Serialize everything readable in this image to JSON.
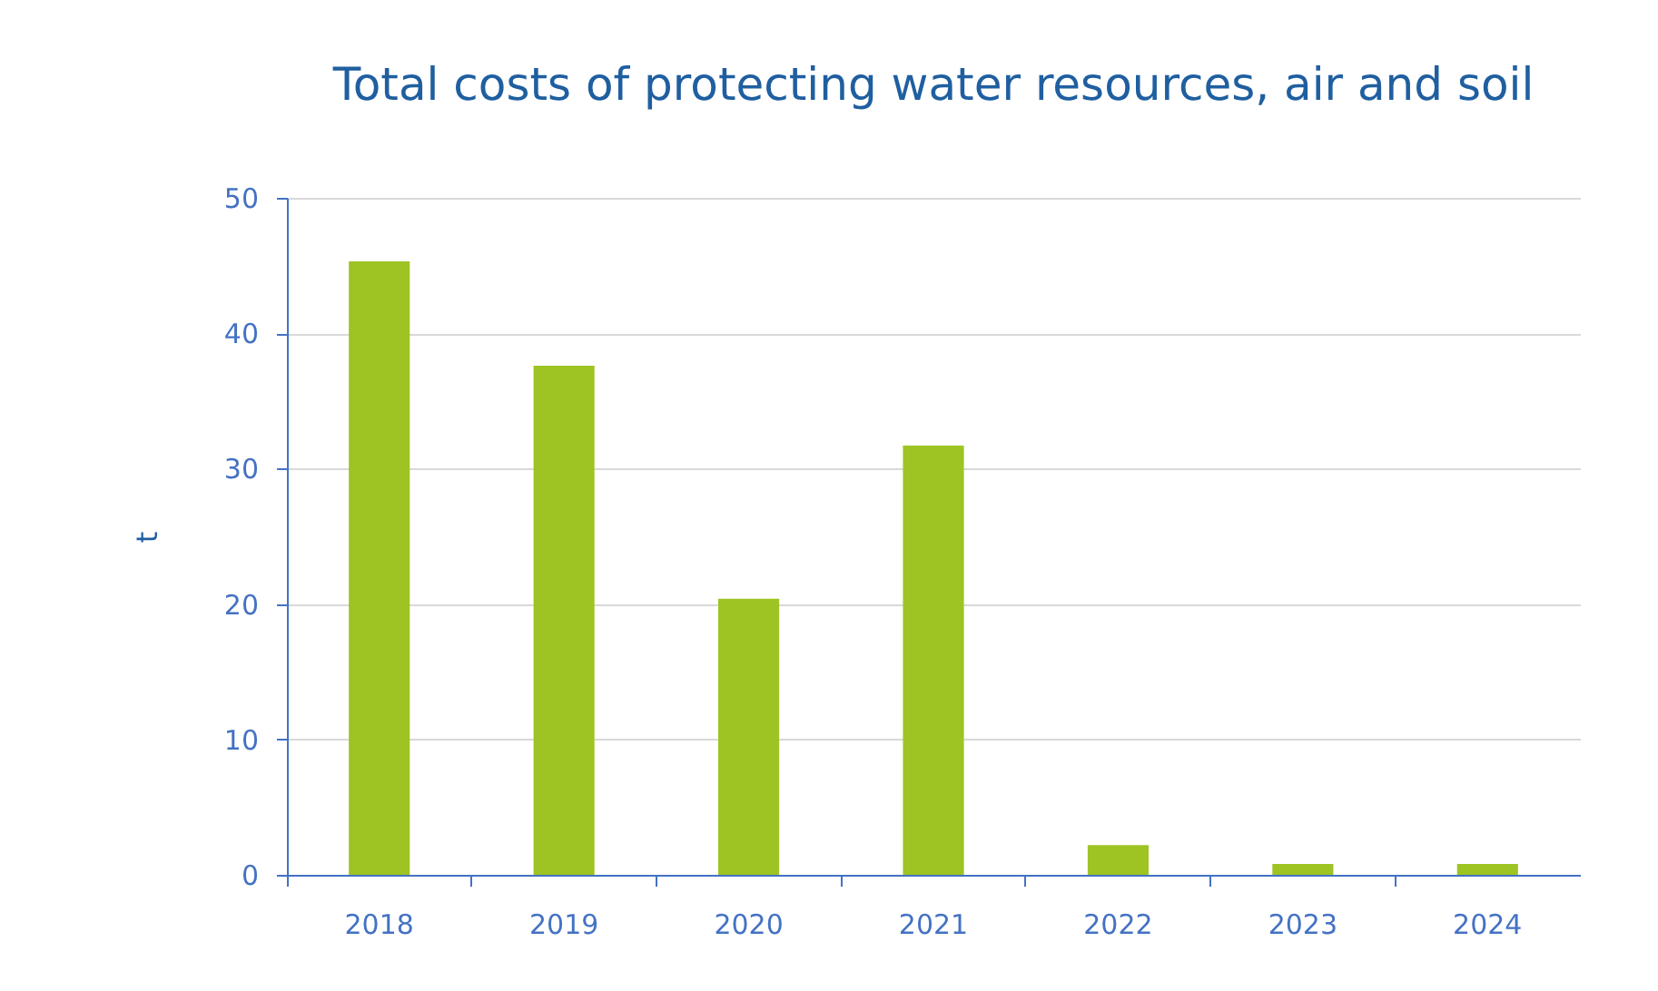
{
  "chart_data": {
    "type": "bar",
    "title": "Total costs of protecting water resources, air and soil",
    "ylabel": "t",
    "categories": [
      "2018",
      "2019",
      "2020",
      "2021",
      "2022",
      "2023",
      "2024"
    ],
    "values": [
      45.3,
      37.6,
      20.4,
      31.7,
      2.2,
      0.8,
      0.8
    ],
    "color": "#9dc423",
    "ylim": [
      0,
      50
    ],
    "yticks": [
      0,
      10,
      20,
      30,
      40,
      50
    ],
    "grid": "y"
  }
}
